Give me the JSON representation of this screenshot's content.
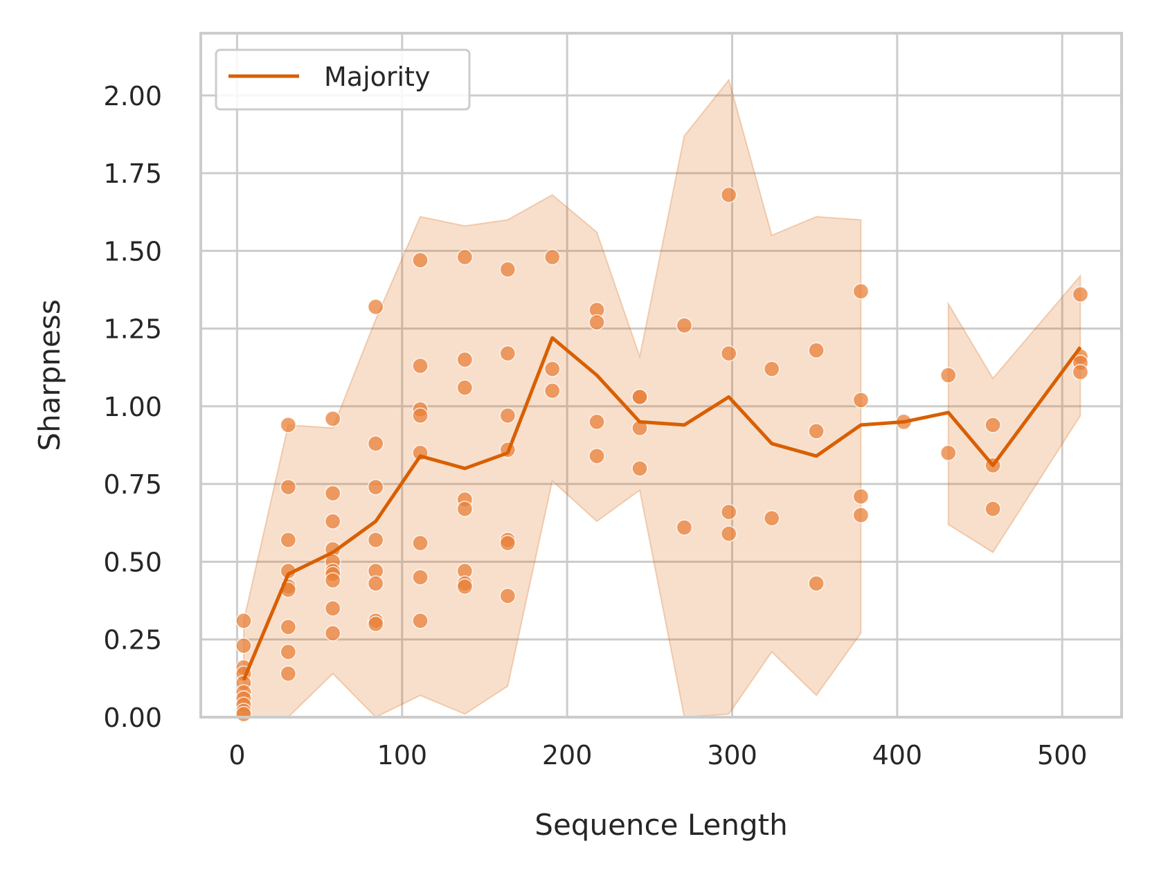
{
  "chart_data": {
    "type": "line",
    "title": "",
    "xlabel": "Sequence Length",
    "ylabel": "Sharpness",
    "xlim": [
      -22,
      536
    ],
    "ylim": [
      0,
      2.2
    ],
    "xticks": [
      0,
      100,
      200,
      300,
      400,
      500
    ],
    "yticks": [
      0.0,
      0.25,
      0.5,
      0.75,
      1.0,
      1.25,
      1.5,
      1.75,
      2.0
    ],
    "xtick_labels": [
      "0",
      "100",
      "200",
      "300",
      "400",
      "500"
    ],
    "ytick_labels": [
      "0.00",
      "0.25",
      "0.50",
      "0.75",
      "1.00",
      "1.25",
      "1.50",
      "1.75",
      "2.00"
    ],
    "grid": true,
    "legend_position": "top-left",
    "color": "#d95f02",
    "series": [
      {
        "name": "Majority",
        "type": "line",
        "x": [
          4,
          31,
          58,
          84,
          111,
          138,
          164,
          191,
          218,
          244,
          271,
          298,
          324,
          351,
          378,
          404,
          431,
          458,
          511
        ],
        "y": [
          0.12,
          0.46,
          0.53,
          0.63,
          0.84,
          0.8,
          0.85,
          1.22,
          1.1,
          0.95,
          0.94,
          1.03,
          0.88,
          0.84,
          0.94,
          0.95,
          0.98,
          0.81,
          1.19
        ]
      }
    ],
    "confidence_band": {
      "segments": [
        {
          "x": [
            4,
            31,
            58,
            84,
            111,
            138,
            164,
            191,
            218,
            244,
            271,
            298,
            324,
            351,
            378
          ],
          "lower": [
            0.0,
            0.0,
            0.14,
            0.0,
            0.07,
            0.01,
            0.1,
            0.76,
            0.63,
            0.73,
            0.0,
            0.01,
            0.21,
            0.07,
            0.27
          ],
          "upper": [
            0.31,
            0.94,
            0.93,
            1.28,
            1.61,
            1.58,
            1.6,
            1.68,
            1.56,
            1.16,
            1.87,
            2.05,
            1.55,
            1.61,
            1.6
          ]
        },
        {
          "x": [
            431,
            458,
            511
          ],
          "lower": [
            0.62,
            0.53,
            0.97
          ],
          "upper": [
            1.33,
            1.09,
            1.42
          ]
        }
      ]
    },
    "points": [
      {
        "x": 4,
        "y": 0.31
      },
      {
        "x": 4,
        "y": 0.23
      },
      {
        "x": 4,
        "y": 0.16
      },
      {
        "x": 4,
        "y": 0.14
      },
      {
        "x": 4,
        "y": 0.11
      },
      {
        "x": 4,
        "y": 0.08
      },
      {
        "x": 4,
        "y": 0.06
      },
      {
        "x": 4,
        "y": 0.04
      },
      {
        "x": 4,
        "y": 0.02
      },
      {
        "x": 4,
        "y": 0.01
      },
      {
        "x": 31,
        "y": 0.94
      },
      {
        "x": 31,
        "y": 0.74
      },
      {
        "x": 31,
        "y": 0.57
      },
      {
        "x": 31,
        "y": 0.47
      },
      {
        "x": 31,
        "y": 0.42
      },
      {
        "x": 31,
        "y": 0.41
      },
      {
        "x": 31,
        "y": 0.29
      },
      {
        "x": 31,
        "y": 0.21
      },
      {
        "x": 31,
        "y": 0.14
      },
      {
        "x": 58,
        "y": 0.96
      },
      {
        "x": 58,
        "y": 0.72
      },
      {
        "x": 58,
        "y": 0.63
      },
      {
        "x": 58,
        "y": 0.54
      },
      {
        "x": 58,
        "y": 0.5
      },
      {
        "x": 58,
        "y": 0.47
      },
      {
        "x": 58,
        "y": 0.46
      },
      {
        "x": 58,
        "y": 0.44
      },
      {
        "x": 58,
        "y": 0.35
      },
      {
        "x": 58,
        "y": 0.27
      },
      {
        "x": 84,
        "y": 1.32
      },
      {
        "x": 84,
        "y": 0.88
      },
      {
        "x": 84,
        "y": 0.74
      },
      {
        "x": 84,
        "y": 0.57
      },
      {
        "x": 84,
        "y": 0.47
      },
      {
        "x": 84,
        "y": 0.43
      },
      {
        "x": 84,
        "y": 0.31
      },
      {
        "x": 84,
        "y": 0.3
      },
      {
        "x": 111,
        "y": 1.47
      },
      {
        "x": 111,
        "y": 1.13
      },
      {
        "x": 111,
        "y": 0.99
      },
      {
        "x": 111,
        "y": 0.97
      },
      {
        "x": 111,
        "y": 0.85
      },
      {
        "x": 111,
        "y": 0.56
      },
      {
        "x": 111,
        "y": 0.45
      },
      {
        "x": 111,
        "y": 0.31
      },
      {
        "x": 138,
        "y": 1.48
      },
      {
        "x": 138,
        "y": 1.15
      },
      {
        "x": 138,
        "y": 1.06
      },
      {
        "x": 138,
        "y": 0.7
      },
      {
        "x": 138,
        "y": 0.67
      },
      {
        "x": 138,
        "y": 0.47
      },
      {
        "x": 138,
        "y": 0.43
      },
      {
        "x": 138,
        "y": 0.42
      },
      {
        "x": 164,
        "y": 1.44
      },
      {
        "x": 164,
        "y": 1.17
      },
      {
        "x": 164,
        "y": 0.97
      },
      {
        "x": 164,
        "y": 0.86
      },
      {
        "x": 164,
        "y": 0.57
      },
      {
        "x": 164,
        "y": 0.56
      },
      {
        "x": 164,
        "y": 0.39
      },
      {
        "x": 191,
        "y": 1.48
      },
      {
        "x": 191,
        "y": 1.12
      },
      {
        "x": 191,
        "y": 1.05
      },
      {
        "x": 218,
        "y": 1.31
      },
      {
        "x": 218,
        "y": 1.27
      },
      {
        "x": 218,
        "y": 0.95
      },
      {
        "x": 218,
        "y": 0.84
      },
      {
        "x": 244,
        "y": 1.03
      },
      {
        "x": 244,
        "y": 1.03
      },
      {
        "x": 244,
        "y": 0.93
      },
      {
        "x": 244,
        "y": 0.8
      },
      {
        "x": 271,
        "y": 1.26
      },
      {
        "x": 271,
        "y": 0.61
      },
      {
        "x": 298,
        "y": 1.68
      },
      {
        "x": 298,
        "y": 1.17
      },
      {
        "x": 298,
        "y": 0.66
      },
      {
        "x": 298,
        "y": 0.59
      },
      {
        "x": 324,
        "y": 1.12
      },
      {
        "x": 324,
        "y": 0.64
      },
      {
        "x": 351,
        "y": 1.18
      },
      {
        "x": 351,
        "y": 0.92
      },
      {
        "x": 351,
        "y": 0.43
      },
      {
        "x": 378,
        "y": 1.37
      },
      {
        "x": 378,
        "y": 1.02
      },
      {
        "x": 378,
        "y": 0.71
      },
      {
        "x": 378,
        "y": 0.65
      },
      {
        "x": 404,
        "y": 0.95
      },
      {
        "x": 431,
        "y": 1.1
      },
      {
        "x": 431,
        "y": 0.85
      },
      {
        "x": 458,
        "y": 0.94
      },
      {
        "x": 458,
        "y": 0.81
      },
      {
        "x": 458,
        "y": 0.67
      },
      {
        "x": 511,
        "y": 1.36
      },
      {
        "x": 511,
        "y": 1.16
      },
      {
        "x": 511,
        "y": 1.14
      },
      {
        "x": 511,
        "y": 1.11
      }
    ]
  }
}
